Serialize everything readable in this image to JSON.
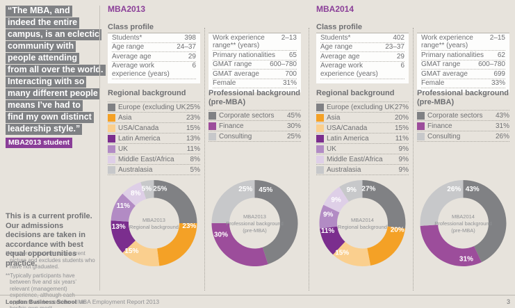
{
  "colors": {
    "accent_purple": "#8A3E98",
    "dark_grey": "#808184",
    "orange": "#F4A126",
    "peach": "#FACF8E",
    "dark_purple": "#7B2E8E",
    "med_purple": "#B28BC4",
    "light_lavender": "#DECFE7",
    "light_grey": "#C7C8CA",
    "finance_purple": "#9C4D9B"
  },
  "sidebar": {
    "quote_lines": [
      "“The MBA, and",
      "indeed the entire",
      "campus, is an eclectic",
      "community with",
      "people attending",
      "from all over the world.",
      "Interacting with so",
      "many different people",
      "means I’ve had to",
      "find my own distinct",
      "leadership style.”"
    ],
    "quote_attribution": "MBA2013 student",
    "profile_note": "This is a current profile. Our admissions decisions are taken in accordance with best equal opportunities practice.",
    "footnotes": [
      "*Number of students is a current picture and excludes students who have not graduated.",
      "**Typically participants have between five and six years’ relevant (management) experience, although each applicant will be considered on her/his own merit."
    ]
  },
  "footer": {
    "bold": "London Business School",
    "rest": " MBA Employment Report 2013",
    "page_number": "3"
  },
  "sections": [
    {
      "title": "MBA2013",
      "class_profile_heading": "Class profile",
      "table1": [
        {
          "label": "Students*",
          "value": "398"
        },
        {
          "label": "Age range",
          "value": "24–37"
        },
        {
          "label": "Average age",
          "value": "29"
        },
        {
          "label": "Average work experience (years)",
          "value": "6"
        }
      ],
      "table2": [
        {
          "label": "Work experience range** (years)",
          "value": "2–13"
        },
        {
          "label": "Primary nationalities",
          "value": "65"
        },
        {
          "label": "GMAT range",
          "value": "600–780"
        },
        {
          "label": "GMAT average",
          "value": "700"
        },
        {
          "label": "Female",
          "value": "31%"
        }
      ],
      "regional": {
        "heading": "Regional background",
        "items": [
          {
            "label": "Europe (excluding UK)",
            "value": "25%",
            "color": "dark_grey"
          },
          {
            "label": "Asia",
            "value": "23%",
            "color": "orange"
          },
          {
            "label": "USA/Canada",
            "value": "15%",
            "color": "peach"
          },
          {
            "label": "Latin America",
            "value": "13%",
            "color": "dark_purple"
          },
          {
            "label": "UK",
            "value": "11%",
            "color": "med_purple"
          },
          {
            "label": "Middle East/Africa",
            "value": "8%",
            "color": "light_lavender"
          },
          {
            "label": "Australasia",
            "value": "5%",
            "color": "light_grey"
          }
        ]
      },
      "professional": {
        "heading": "Professional background (pre-MBA)",
        "items": [
          {
            "label": "Corporate sectors",
            "value": "45%",
            "color": "dark_grey"
          },
          {
            "label": "Finance",
            "value": "30%",
            "color": "finance_purple"
          },
          {
            "label": "Consulting",
            "value": "25%",
            "color": "light_grey"
          }
        ]
      }
    },
    {
      "title": "MBA2014",
      "class_profile_heading": "Class profile",
      "table1": [
        {
          "label": "Students*",
          "value": "402"
        },
        {
          "label": "Age range",
          "value": "23–37"
        },
        {
          "label": "Average age",
          "value": "29"
        },
        {
          "label": "Average work experience (years)",
          "value": "6"
        }
      ],
      "table2": [
        {
          "label": "Work experience range** (years)",
          "value": "2–15"
        },
        {
          "label": "Primary nationalities",
          "value": "62"
        },
        {
          "label": "GMAT range",
          "value": "600–780"
        },
        {
          "label": "GMAT average",
          "value": "699"
        },
        {
          "label": "Female",
          "value": "33%"
        }
      ],
      "regional": {
        "heading": "Regional background",
        "items": [
          {
            "label": "Europe (excluding UK)",
            "value": "27%",
            "color": "dark_grey"
          },
          {
            "label": "Asia",
            "value": "20%",
            "color": "orange"
          },
          {
            "label": "USA/Canada",
            "value": "15%",
            "color": "peach"
          },
          {
            "label": "Latin America",
            "value": "11%",
            "color": "dark_purple"
          },
          {
            "label": "UK",
            "value": "9%",
            "color": "med_purple"
          },
          {
            "label": "Middle East/Africa",
            "value": "9%",
            "color": "light_lavender"
          },
          {
            "label": "Australasia",
            "value": "9%",
            "color": "light_grey"
          }
        ]
      },
      "professional": {
        "heading": "Professional background (pre-MBA)",
        "items": [
          {
            "label": "Corporate sectors",
            "value": "43%",
            "color": "dark_grey"
          },
          {
            "label": "Finance",
            "value": "31%",
            "color": "finance_purple"
          },
          {
            "label": "Consulting",
            "value": "26%",
            "color": "light_grey"
          }
        ]
      }
    }
  ],
  "chart_data": [
    {
      "type": "pie",
      "title": "MBA2013 Regional background",
      "center_label": [
        "MBA2013",
        "Regional background"
      ],
      "labels": [
        "Europe (excluding UK)",
        "Asia",
        "USA/Canada",
        "Latin America",
        "UK",
        "Middle East/Africa",
        "Australasia"
      ],
      "values": [
        25,
        23,
        15,
        13,
        11,
        8,
        5
      ],
      "value_labels": [
        "25%",
        "23%",
        "15%",
        "13%",
        "11%",
        "8%",
        "5%"
      ],
      "colors": [
        "dark_grey",
        "orange",
        "peach",
        "dark_purple",
        "med_purple",
        "light_lavender",
        "light_grey"
      ],
      "label_angles": [
        10,
        94,
        219,
        265,
        300,
        329,
        348
      ],
      "legend_position": "list-above",
      "donut": true
    },
    {
      "type": "pie",
      "title": "MBA2013 Professional background (pre-MBA)",
      "center_label": [
        "MBA2013",
        "Professional background",
        "(pre-MBA)"
      ],
      "labels": [
        "Corporate sectors",
        "Finance",
        "Consulting"
      ],
      "values": [
        45,
        30,
        25
      ],
      "value_labels": [
        "45%",
        "30%",
        "25%"
      ],
      "colors": [
        "dark_grey",
        "finance_purple",
        "light_grey"
      ],
      "label_angles": [
        18,
        252,
        345
      ],
      "legend_position": "list-above",
      "donut": true
    },
    {
      "type": "pie",
      "title": "MBA2014 Regional background",
      "center_label": [
        "MBA2014",
        "Regional background"
      ],
      "labels": [
        "Europe (excluding UK)",
        "Asia",
        "USA/Canada",
        "Latin America",
        "UK",
        "Middle East/Africa",
        "Australasia"
      ],
      "values": [
        27,
        20,
        15,
        11,
        9,
        9,
        9
      ],
      "value_labels": [
        "27%",
        "20%",
        "15%",
        "11%",
        "9%",
        "9%",
        "9%"
      ],
      "colors": [
        "dark_grey",
        "orange",
        "peach",
        "dark_purple",
        "med_purple",
        "light_lavender",
        "light_grey"
      ],
      "label_angles": [
        10,
        100,
        215,
        258,
        285,
        312,
        342
      ],
      "legend_position": "list-above",
      "donut": true
    },
    {
      "type": "pie",
      "title": "MBA2014 Professional background (pre-MBA)",
      "center_label": [
        "MBA2014",
        "Professional background",
        "(pre-MBA)"
      ],
      "labels": [
        "Corporate sectors",
        "Finance",
        "Consulting"
      ],
      "values": [
        43,
        31,
        26
      ],
      "value_labels": [
        "43%",
        "31%",
        "26%"
      ],
      "colors": [
        "dark_grey",
        "finance_purple",
        "light_grey"
      ],
      "label_angles": [
        15,
        175,
        345
      ],
      "legend_position": "list-above",
      "donut": true
    }
  ]
}
